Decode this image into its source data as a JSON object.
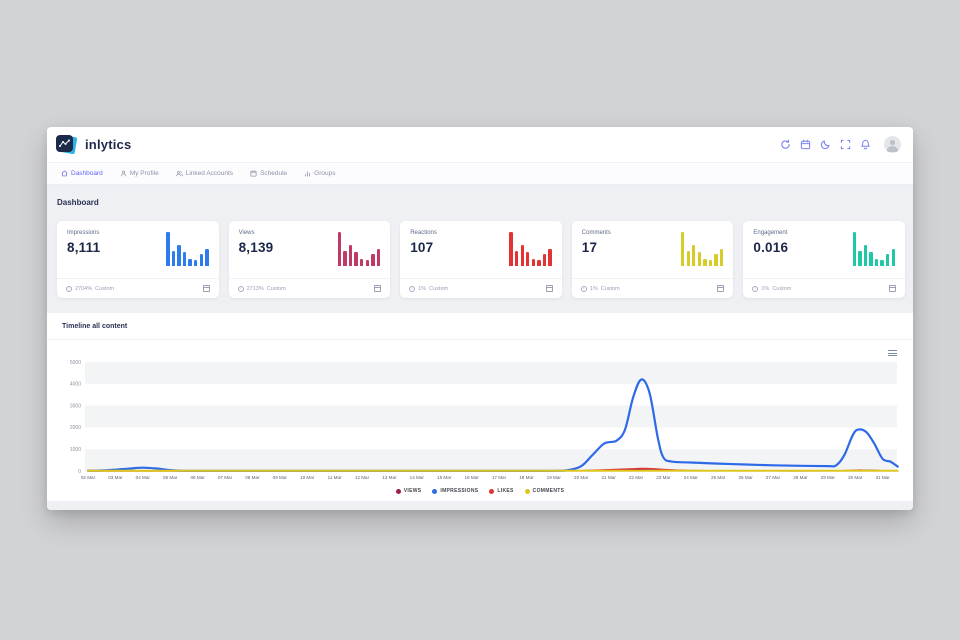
{
  "brand": {
    "name": "inlytics"
  },
  "header": {
    "icons": [
      "refresh-icon",
      "calendar-icon",
      "moon-icon",
      "fullscreen-icon",
      "bell-icon"
    ]
  },
  "nav": {
    "items": [
      {
        "label": "Dashboard",
        "active": true
      },
      {
        "label": "My Profile",
        "active": false
      },
      {
        "label": "Linked Accounts",
        "active": false
      },
      {
        "label": "Schedule",
        "active": false
      },
      {
        "label": "Groups",
        "active": false
      }
    ]
  },
  "page": {
    "title": "Dashboard"
  },
  "stat_cards": [
    {
      "label": "Impressions",
      "value": "8,111",
      "change": "2704%",
      "range_label": "Custom",
      "color": "#2e7bf0",
      "bars": [
        100,
        45,
        62,
        40,
        22,
        18,
        36,
        50
      ]
    },
    {
      "label": "Views",
      "value": "8,139",
      "change": "2713%",
      "range_label": "Custom",
      "color": "#c13a63",
      "bars": [
        100,
        45,
        62,
        40,
        22,
        18,
        36,
        50
      ]
    },
    {
      "label": "Reactions",
      "value": "107",
      "change": "1%",
      "range_label": "Custom",
      "color": "#e23434",
      "bars": [
        100,
        45,
        62,
        40,
        22,
        18,
        36,
        50
      ]
    },
    {
      "label": "Comments",
      "value": "17",
      "change": "1%",
      "range_label": "Custom",
      "color": "#d6cc28",
      "bars": [
        100,
        45,
        62,
        40,
        22,
        18,
        36,
        50
      ]
    },
    {
      "label": "Engagement",
      "value": "0.016",
      "change": "1%",
      "range_label": "Custom",
      "color": "#1ec7a6",
      "bars": [
        100,
        45,
        62,
        40,
        22,
        18,
        36,
        50
      ]
    }
  ],
  "timeline": {
    "title": "Timeline all content"
  },
  "chart_data": {
    "type": "line",
    "title": "Timeline all content",
    "x_labels": [
      "02 Mar",
      "03 Mar",
      "04 Mar",
      "05 Mar",
      "06 Mar",
      "07 Mar",
      "08 Mar",
      "09 Mar",
      "10 Mar",
      "11 Mar",
      "12 Mar",
      "13 Mar",
      "14 Mar",
      "15 Mar",
      "16 Mar",
      "17 Mar",
      "18 Mar",
      "19 Mar",
      "20 Mar",
      "21 Mar",
      "22 Mar",
      "23 Mar",
      "24 Mar",
      "25 Mar",
      "26 Mar",
      "27 Mar",
      "28 Mar",
      "29 Mar",
      "30 Mar",
      "31 Mar"
    ],
    "ylim": [
      0,
      5000
    ],
    "yticks": [
      0,
      1000,
      2000,
      3000,
      4000,
      5000
    ],
    "grid": "alternating-horizontal-bands",
    "legend_position": "bottom",
    "series": [
      {
        "name": "VIEWS",
        "color": "#9c1f44",
        "width": 1.3,
        "points": [
          [
            0,
            2
          ],
          [
            8,
            2
          ],
          [
            16,
            2
          ],
          [
            17,
            4
          ],
          [
            18,
            15
          ],
          [
            19,
            45
          ],
          [
            20,
            75
          ],
          [
            20.5,
            85
          ],
          [
            21,
            55
          ],
          [
            22,
            25
          ],
          [
            23,
            12
          ],
          [
            25,
            6
          ],
          [
            27,
            5
          ],
          [
            28,
            28
          ],
          [
            28.4,
            35
          ],
          [
            29,
            18
          ],
          [
            29.55,
            8
          ]
        ]
      },
      {
        "name": "LIKES",
        "color": "#e23434",
        "width": 1.3,
        "points": [
          [
            0,
            2
          ],
          [
            8,
            2
          ],
          [
            16,
            2
          ],
          [
            17,
            5
          ],
          [
            18,
            20
          ],
          [
            19,
            65
          ],
          [
            20,
            110
          ],
          [
            20.4,
            120
          ],
          [
            21,
            75
          ],
          [
            21.5,
            40
          ],
          [
            22,
            20
          ],
          [
            23,
            10
          ],
          [
            25,
            5
          ],
          [
            27.5,
            12
          ],
          [
            28.1,
            42
          ],
          [
            28.6,
            25
          ],
          [
            29,
            12
          ],
          [
            29.55,
            5
          ]
        ]
      },
      {
        "name": "IMPRESSIONS",
        "color": "#2e6ae8",
        "width": 2.2,
        "points": [
          [
            0,
            15
          ],
          [
            0.5,
            25
          ],
          [
            1,
            60
          ],
          [
            1.5,
            110
          ],
          [
            2,
            150
          ],
          [
            2.5,
            115
          ],
          [
            3,
            40
          ],
          [
            3.5,
            10
          ],
          [
            4,
            6
          ],
          [
            6,
            5
          ],
          [
            8,
            5
          ],
          [
            10,
            5
          ],
          [
            12,
            5
          ],
          [
            14,
            5
          ],
          [
            16,
            5
          ],
          [
            17,
            10
          ],
          [
            17.5,
            35
          ],
          [
            18,
            220
          ],
          [
            18.4,
            720
          ],
          [
            18.8,
            1230
          ],
          [
            19,
            1320
          ],
          [
            19.3,
            1400
          ],
          [
            19.6,
            1900
          ],
          [
            19.9,
            3400
          ],
          [
            20.2,
            4200
          ],
          [
            20.5,
            3550
          ],
          [
            20.8,
            1500
          ],
          [
            21,
            620
          ],
          [
            21.3,
            430
          ],
          [
            22,
            390
          ],
          [
            23,
            340
          ],
          [
            24,
            300
          ],
          [
            25,
            260
          ],
          [
            26,
            240
          ],
          [
            27,
            225
          ],
          [
            27.3,
            255
          ],
          [
            27.6,
            720
          ],
          [
            27.9,
            1620
          ],
          [
            28.1,
            1900
          ],
          [
            28.4,
            1790
          ],
          [
            28.7,
            1250
          ],
          [
            29,
            560
          ],
          [
            29.3,
            420
          ],
          [
            29.55,
            200
          ]
        ]
      },
      {
        "name": "COMMENTS",
        "color": "#ddc71e",
        "width": 2,
        "points": [
          [
            0,
            10
          ],
          [
            5,
            10
          ],
          [
            10,
            10
          ],
          [
            15,
            10
          ],
          [
            20,
            10
          ],
          [
            25,
            10
          ],
          [
            29.55,
            10
          ]
        ]
      }
    ]
  }
}
